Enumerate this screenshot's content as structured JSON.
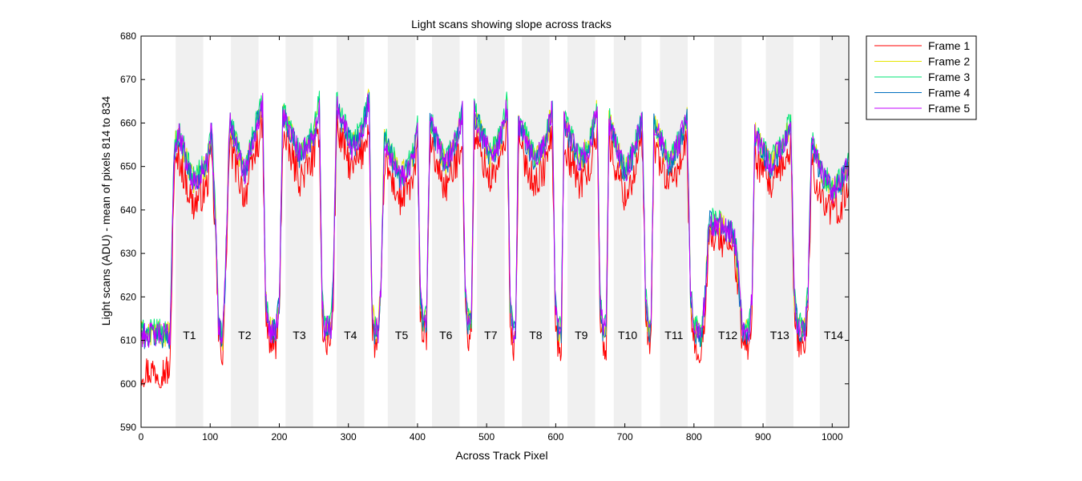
{
  "chart_data": {
    "type": "line",
    "title": "Light scans showing slope across tracks",
    "xlabel": "Across Track Pixel",
    "ylabel": "Light scans (ADU) - mean of pixels 814 to 834",
    "xlim": [
      0,
      1024
    ],
    "ylim": [
      590,
      680
    ],
    "xticks": [
      0,
      100,
      200,
      300,
      400,
      500,
      600,
      700,
      800,
      900,
      1000
    ],
    "yticks": [
      590,
      600,
      610,
      620,
      630,
      640,
      650,
      660,
      670,
      680
    ],
    "grid": false,
    "legend_position": "outside-top-right",
    "tracks": [
      {
        "label": "T1",
        "x0": 50,
        "x1": 90
      },
      {
        "label": "T2",
        "x0": 130,
        "x1": 170
      },
      {
        "label": "T3",
        "x0": 209,
        "x1": 249
      },
      {
        "label": "T4",
        "x0": 283,
        "x1": 323
      },
      {
        "label": "T5",
        "x0": 357,
        "x1": 397
      },
      {
        "label": "T6",
        "x0": 421,
        "x1": 461
      },
      {
        "label": "T7",
        "x0": 486,
        "x1": 526
      },
      {
        "label": "T8",
        "x0": 551,
        "x1": 591
      },
      {
        "label": "T9",
        "x0": 617,
        "x1": 657
      },
      {
        "label": "T10",
        "x0": 684,
        "x1": 724
      },
      {
        "label": "T11",
        "x0": 751,
        "x1": 791
      },
      {
        "label": "T12",
        "x0": 829,
        "x1": 869
      },
      {
        "label": "T13",
        "x0": 904,
        "x1": 944
      },
      {
        "label": "T14",
        "x0": 982,
        "x1": 1022
      }
    ],
    "shape_keypoints": [
      [
        0,
        611
      ],
      [
        42,
        611
      ],
      [
        48,
        654
      ],
      [
        55,
        657
      ],
      [
        75,
        646
      ],
      [
        95,
        650
      ],
      [
        102,
        658
      ],
      [
        108,
        636
      ],
      [
        112,
        614
      ],
      [
        118,
        610
      ],
      [
        122,
        625
      ],
      [
        128,
        660
      ],
      [
        150,
        648
      ],
      [
        168,
        660
      ],
      [
        176,
        664
      ],
      [
        180,
        620
      ],
      [
        185,
        612
      ],
      [
        195,
        612
      ],
      [
        200,
        618
      ],
      [
        205,
        662
      ],
      [
        230,
        652
      ],
      [
        250,
        657
      ],
      [
        258,
        664
      ],
      [
        262,
        618
      ],
      [
        266,
        612
      ],
      [
        275,
        613
      ],
      [
        278,
        622
      ],
      [
        283,
        664
      ],
      [
        305,
        654
      ],
      [
        320,
        658
      ],
      [
        330,
        665
      ],
      [
        334,
        618
      ],
      [
        338,
        612
      ],
      [
        343,
        612
      ],
      [
        347,
        622
      ],
      [
        352,
        656
      ],
      [
        375,
        647
      ],
      [
        395,
        652
      ],
      [
        400,
        659
      ],
      [
        404,
        620
      ],
      [
        408,
        614
      ],
      [
        413,
        614
      ],
      [
        418,
        660
      ],
      [
        440,
        650
      ],
      [
        455,
        655
      ],
      [
        465,
        662
      ],
      [
        469,
        620
      ],
      [
        473,
        614
      ],
      [
        478,
        614
      ],
      [
        482,
        662
      ],
      [
        505,
        652
      ],
      [
        520,
        656
      ],
      [
        530,
        664
      ],
      [
        534,
        618
      ],
      [
        538,
        612
      ],
      [
        542,
        612
      ],
      [
        546,
        660
      ],
      [
        570,
        651
      ],
      [
        585,
        655
      ],
      [
        595,
        663
      ],
      [
        599,
        620
      ],
      [
        603,
        612
      ],
      [
        608,
        612
      ],
      [
        612,
        660
      ],
      [
        635,
        651
      ],
      [
        650,
        655
      ],
      [
        660,
        663
      ],
      [
        664,
        620
      ],
      [
        668,
        612
      ],
      [
        673,
        612
      ],
      [
        677,
        660
      ],
      [
        700,
        648
      ],
      [
        715,
        654
      ],
      [
        725,
        661
      ],
      [
        730,
        620
      ],
      [
        734,
        612
      ],
      [
        738,
        612
      ],
      [
        742,
        660
      ],
      [
        765,
        650
      ],
      [
        780,
        656
      ],
      [
        790,
        661
      ],
      [
        795,
        620
      ],
      [
        800,
        613
      ],
      [
        810,
        610
      ],
      [
        816,
        620
      ],
      [
        822,
        637
      ],
      [
        840,
        636
      ],
      [
        858,
        634
      ],
      [
        864,
        625
      ],
      [
        870,
        612
      ],
      [
        880,
        612
      ],
      [
        884,
        620
      ],
      [
        888,
        657
      ],
      [
        910,
        650
      ],
      [
        930,
        655
      ],
      [
        940,
        660
      ],
      [
        945,
        620
      ],
      [
        950,
        613
      ],
      [
        960,
        612
      ],
      [
        965,
        620
      ],
      [
        970,
        655
      ],
      [
        985,
        648
      ],
      [
        1000,
        644
      ],
      [
        1012,
        646
      ],
      [
        1024,
        650
      ]
    ],
    "series": [
      {
        "name": "Frame 1",
        "color": "#ff0000",
        "offset": -5,
        "noise": 4.0
      },
      {
        "name": "Frame 2",
        "color": "#e6e600",
        "offset": 0.5,
        "noise": 3.0
      },
      {
        "name": "Frame 3",
        "color": "#00e676",
        "offset": 1.0,
        "noise": 3.0
      },
      {
        "name": "Frame 4",
        "color": "#0070c0",
        "offset": 0.0,
        "noise": 3.0
      },
      {
        "name": "Frame 5",
        "color": "#c000ff",
        "offset": 0.3,
        "noise": 3.0
      }
    ],
    "track_shade_color": "#f0f0f0"
  }
}
